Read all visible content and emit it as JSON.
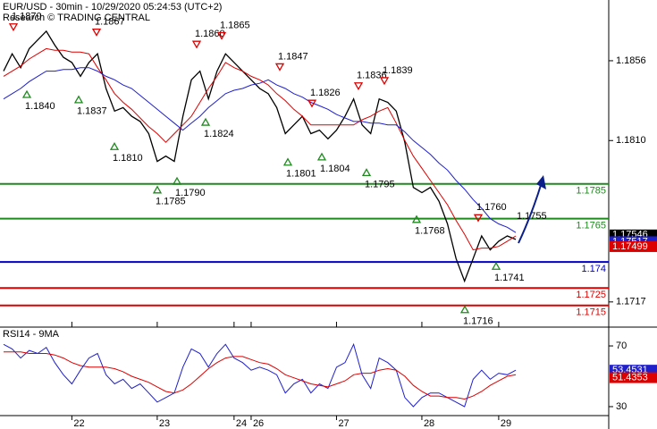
{
  "chart_data": [
    {
      "type": "line",
      "title": "EUR/USD - 30min - 10/29/2020 05:24:53 (UTC+2)",
      "subtitle": "Research © TRADING CENTRAL",
      "categories": [
        null,
        null,
        null,
        null,
        null,
        null,
        null,
        null,
        "22",
        null,
        null,
        null,
        null,
        null,
        null,
        null,
        null,
        null,
        "23",
        null,
        null,
        null,
        null,
        null,
        null,
        null,
        null,
        "24",
        null,
        "26",
        null,
        null,
        null,
        null,
        null,
        null,
        null,
        null,
        null,
        "27",
        null,
        null,
        null,
        null,
        null,
        null,
        null,
        null,
        null,
        "28",
        null,
        null,
        null,
        null,
        null,
        null,
        null,
        null,
        "29",
        null,
        null
      ],
      "ylim": [
        1.1703,
        1.1891
      ],
      "yticks": [
        {
          "value": 1.1856,
          "label": "1.1856"
        },
        {
          "value": 1.181,
          "label": "1.1810"
        },
        {
          "value": 1.1717,
          "label": "1.1717"
        }
      ],
      "axis_side": "right",
      "series": [
        {
          "color": "#000000",
          "values": [
            1.185,
            1.186,
            1.1852,
            1.1863,
            1.1868,
            1.1873,
            1.1865,
            1.1858,
            1.1855,
            1.1847,
            1.1855,
            1.186,
            1.184,
            1.1827,
            1.1829,
            1.1824,
            1.1821,
            1.1814,
            1.1798,
            1.1801,
            1.1798,
            1.1824,
            1.1845,
            1.185,
            1.1834,
            1.185,
            1.186,
            1.1855,
            1.185,
            1.1845,
            1.184,
            1.1837,
            1.1829,
            1.1814,
            1.1819,
            1.1824,
            1.1814,
            1.1816,
            1.1811,
            1.1816,
            1.1824,
            1.1834,
            1.1819,
            1.1814,
            1.1834,
            1.1832,
            1.1827,
            1.1809,
            1.1783,
            1.178,
            1.1783,
            1.1775,
            1.1762,
            1.1742,
            1.1729,
            1.1742,
            1.1755,
            1.1747,
            1.1752,
            1.1755,
            1.1753
          ]
        },
        {
          "color": "#dd0000",
          "values": [
            1.1847,
            1.185,
            1.1853,
            1.1857,
            1.186,
            1.1863,
            1.1862,
            1.1862,
            1.1861,
            1.1861,
            1.186,
            1.1852,
            1.1845,
            1.1837,
            1.1832,
            1.1828,
            1.1823,
            1.1818,
            1.1814,
            1.1809,
            1.1814,
            1.1819,
            1.1824,
            1.1832,
            1.184,
            1.1847,
            1.1855,
            1.1852,
            1.185,
            1.1847,
            1.1845,
            1.1842,
            1.1837,
            1.1833,
            1.1828,
            1.1824,
            1.1819,
            1.1819,
            1.1819,
            1.1819,
            1.1819,
            1.1819,
            1.1822,
            1.1824,
            1.1827,
            1.1829,
            1.182,
            1.181,
            1.1801,
            1.1794,
            1.1787,
            1.178,
            1.1773,
            1.1764,
            1.1756,
            1.1747,
            1.1748,
            1.1748,
            1.1749,
            1.1752,
            1.1755
          ]
        },
        {
          "color": "#1f1fcc",
          "values": [
            1.1834,
            1.1837,
            1.184,
            1.1844,
            1.1847,
            1.185,
            1.185,
            1.1851,
            1.1851,
            1.1852,
            1.1852,
            1.185,
            1.1847,
            1.1845,
            1.1842,
            1.184,
            1.1836,
            1.1832,
            1.1828,
            1.1824,
            1.182,
            1.1816,
            1.182,
            1.1824,
            1.1829,
            1.1833,
            1.1837,
            1.1839,
            1.184,
            1.1842,
            1.1843,
            1.1845,
            1.1842,
            1.184,
            1.1837,
            1.1835,
            1.1832,
            1.183,
            1.1828,
            1.1825,
            1.1823,
            1.1821,
            1.1821,
            1.182,
            1.182,
            1.1819,
            1.1819,
            1.1815,
            1.181,
            1.1806,
            1.1802,
            1.1797,
            1.1793,
            1.1787,
            1.1782,
            1.1776,
            1.1771,
            1.1765,
            1.1762,
            1.176,
            1.1757
          ]
        }
      ],
      "levels": [
        {
          "value": 1.1785,
          "color": "#1e8a1e"
        },
        {
          "value": 1.1765,
          "color": "#1e8a1e"
        },
        {
          "value": 1.174,
          "color": "#0000cc"
        },
        {
          "value": 1.1725,
          "color": "#dd0000"
        },
        {
          "value": 1.1715,
          "color": "#dd0000"
        }
      ],
      "annotations": [
        {
          "value": 1.187,
          "label": "1.1870",
          "kind": "high"
        },
        {
          "value": 1.184,
          "label": "1.1840",
          "kind": "low"
        },
        {
          "value": 1.1837,
          "label": "1.1837",
          "kind": "low"
        },
        {
          "value": 1.1867,
          "label": "1.1867",
          "kind": "high"
        },
        {
          "value": 1.181,
          "label": "1.1810",
          "kind": "low"
        },
        {
          "value": 1.1785,
          "label": "1.1785",
          "kind": "low"
        },
        {
          "value": 1.179,
          "label": "1.1790",
          "kind": "low"
        },
        {
          "value": 1.186,
          "label": "1.1860",
          "kind": "high"
        },
        {
          "value": 1.1824,
          "label": "1.1824",
          "kind": "low"
        },
        {
          "value": 1.1865,
          "label": "1.1865",
          "kind": "high"
        },
        {
          "value": 1.1847,
          "label": "1.1847",
          "kind": "high"
        },
        {
          "value": 1.1801,
          "label": "1.1801",
          "kind": "low"
        },
        {
          "value": 1.1826,
          "label": "1.1826",
          "kind": "high"
        },
        {
          "value": 1.1804,
          "label": "1.1804",
          "kind": "low"
        },
        {
          "value": 1.1836,
          "label": "1.1836",
          "kind": "high"
        },
        {
          "value": 1.1795,
          "label": "1.1795",
          "kind": "low"
        },
        {
          "value": 1.1839,
          "label": "1.1839",
          "kind": "high"
        },
        {
          "value": 1.1768,
          "label": "1.1768",
          "kind": "low"
        },
        {
          "value": 1.1716,
          "label": "1.1716",
          "kind": "low"
        },
        {
          "value": 1.176,
          "label": "1.1760",
          "kind": "high"
        },
        {
          "value": 1.1741,
          "label": "1.1741",
          "kind": "low"
        },
        {
          "value": 1.1755,
          "label": "1.1755"
        }
      ],
      "price_tags": [
        {
          "value": 1.17546,
          "color": "#000000"
        },
        {
          "value": 1.17517,
          "color": "#1f1fcc"
        },
        {
          "value": 1.17499,
          "color": "#dd0000"
        }
      ]
    },
    {
      "type": "line",
      "title": "RSI14 - 9MA",
      "ylim": [
        24.1,
        81.8
      ],
      "yticks": [
        70,
        30
      ],
      "axis_side": "right",
      "series": [
        {
          "color": "#1f1fcc",
          "values": [
            71,
            68,
            62,
            67,
            65,
            69,
            59,
            51,
            45,
            54,
            62,
            65,
            51,
            45,
            48,
            42,
            45,
            39,
            33,
            36,
            39,
            56,
            68,
            65,
            56,
            65,
            71,
            62,
            59,
            54,
            56,
            54,
            51,
            39,
            45,
            48,
            39,
            45,
            42,
            56,
            59,
            71,
            51,
            42,
            62,
            59,
            54,
            36,
            30,
            36,
            39,
            39,
            36,
            33,
            30,
            48,
            54,
            48,
            52,
            51,
            54
          ]
        },
        {
          "color": "#dd0000",
          "values": [
            66,
            66,
            66,
            65,
            65,
            65,
            64,
            62,
            59,
            57,
            56,
            56,
            56,
            55,
            53,
            50,
            48,
            46,
            43,
            40,
            39,
            41,
            45,
            50,
            55,
            59,
            62,
            63,
            63,
            61,
            59,
            58,
            55,
            51,
            49,
            47,
            45,
            44,
            43,
            45,
            47,
            51,
            52,
            52,
            54,
            55,
            54,
            50,
            44,
            40,
            37,
            37,
            36,
            36,
            35,
            37,
            40,
            44,
            47,
            50,
            51
          ]
        }
      ],
      "value_tags": [
        {
          "value": 53.4531,
          "color": "#1f1fcc"
        },
        {
          "value": 51.4353,
          "color": "#dd0000"
        }
      ]
    }
  ]
}
